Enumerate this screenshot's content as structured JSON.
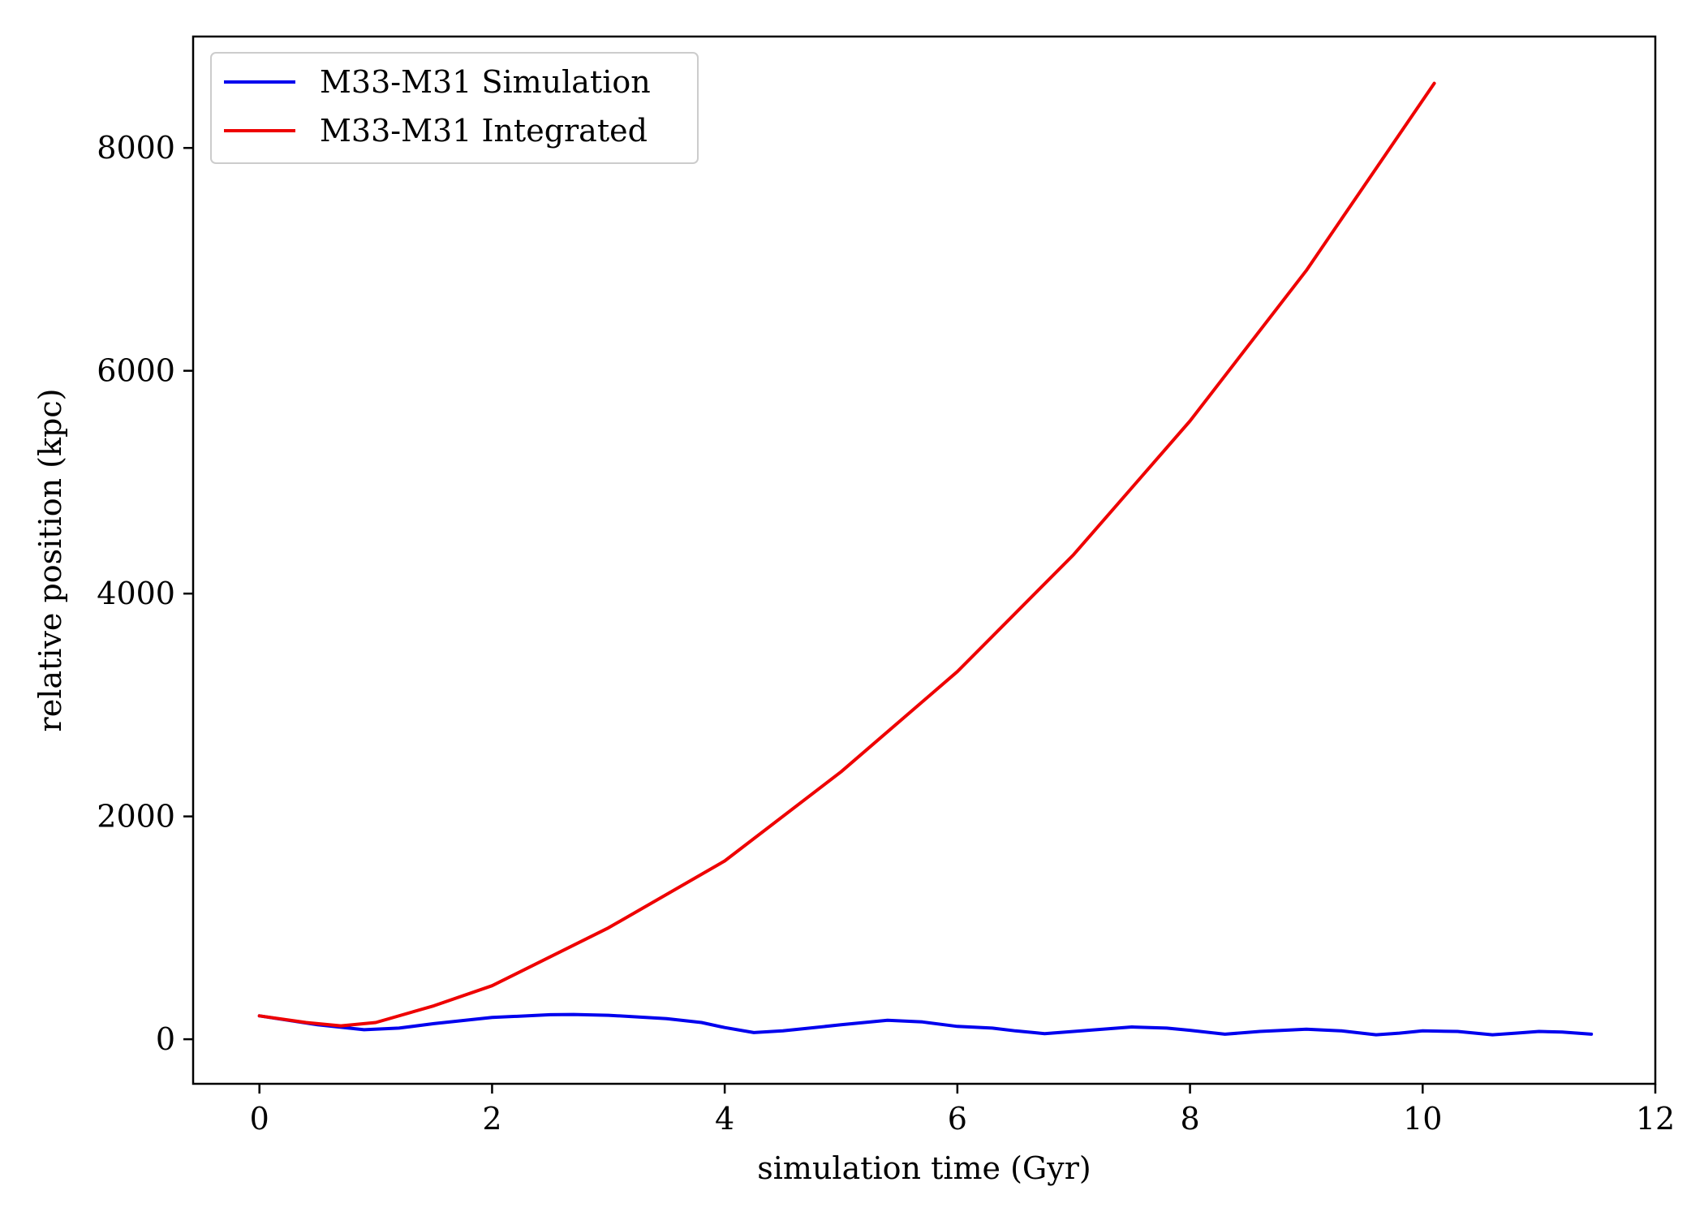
{
  "chart_data": {
    "type": "line",
    "xlabel": "simulation time (Gyr)",
    "ylabel": "relative position (kpc)",
    "xlim": [
      -0.57,
      12.0
    ],
    "ylim": [
      -400,
      9000
    ],
    "xticks": [
      0,
      2,
      4,
      6,
      8,
      10,
      12
    ],
    "xtick_labels": [
      "0",
      "2",
      "4",
      "6",
      "8",
      "10",
      "12"
    ],
    "yticks": [
      0,
      2000,
      4000,
      6000,
      8000
    ],
    "ytick_labels": [
      "0",
      "2000",
      "4000",
      "6000",
      "8000"
    ],
    "grid": false,
    "legend_position": "upper-left",
    "series": [
      {
        "name": "M33-M31 Simulation",
        "color": "#0000ee",
        "x": [
          0.0,
          0.5,
          0.9,
          1.2,
          1.5,
          2.0,
          2.5,
          2.7,
          3.0,
          3.5,
          3.8,
          4.0,
          4.25,
          4.5,
          5.0,
          5.4,
          5.7,
          6.0,
          6.3,
          6.5,
          6.75,
          7.0,
          7.5,
          7.8,
          8.0,
          8.3,
          8.6,
          9.0,
          9.3,
          9.6,
          9.8,
          10.0,
          10.3,
          10.6,
          10.8,
          11.0,
          11.2,
          11.45
        ],
        "y": [
          210,
          130,
          85,
          100,
          140,
          195,
          220,
          222,
          215,
          185,
          150,
          105,
          60,
          75,
          130,
          170,
          155,
          115,
          100,
          75,
          50,
          70,
          110,
          100,
          80,
          45,
          70,
          90,
          75,
          40,
          55,
          75,
          70,
          40,
          55,
          70,
          65,
          45
        ]
      },
      {
        "name": "M33-M31 Integrated",
        "color": "#ee0000",
        "x": [
          0.0,
          0.4,
          0.7,
          1.0,
          1.5,
          2.0,
          3.0,
          4.0,
          5.0,
          6.0,
          7.0,
          8.0,
          9.0,
          10.1
        ],
        "y": [
          210,
          150,
          120,
          150,
          300,
          480,
          1000,
          1600,
          2400,
          3300,
          4350,
          5550,
          6900,
          8580
        ]
      }
    ]
  }
}
